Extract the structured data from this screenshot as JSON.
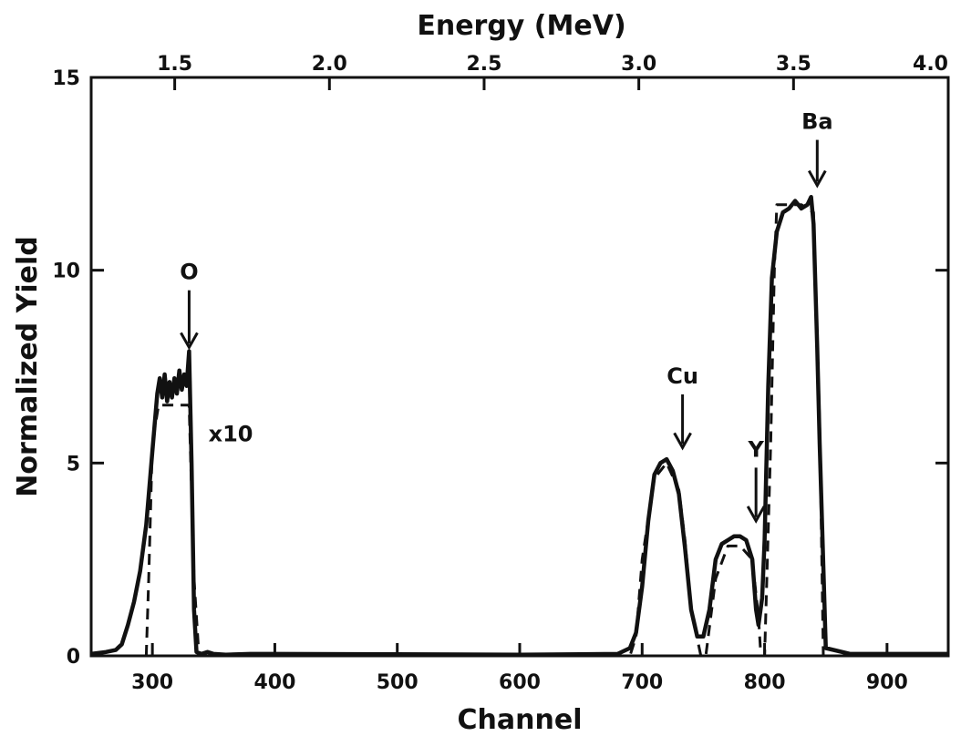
{
  "chart_data": {
    "type": "line",
    "xlabel": "Channel",
    "ylabel": "Normalized Yield",
    "x2label": "Energy (MeV)",
    "xlim": [
      250,
      950
    ],
    "ylim": [
      0,
      15
    ],
    "x2lim": [
      1.23,
      4.0
    ],
    "x_ticks": [
      300,
      400,
      500,
      600,
      700,
      800,
      900
    ],
    "y_ticks": [
      0,
      5,
      10,
      15
    ],
    "x2_ticks": [
      1.5,
      2.0,
      2.5,
      3.0,
      3.5,
      4.0
    ],
    "x2_tick_labels": [
      "1.5",
      "2.0",
      "2.5",
      "3.0",
      "3.5",
      "4.0"
    ],
    "grid": false,
    "series": [
      {
        "style": "solid",
        "x": [
          250,
          262,
          270,
          275,
          280,
          285,
          290,
          295,
          300,
          304,
          306,
          308,
          310,
          312,
          314,
          316,
          318,
          320,
          322,
          324,
          326,
          328,
          330,
          332,
          334,
          336,
          340,
          345,
          350,
          360,
          380,
          400,
          500,
          600,
          680,
          690,
          695,
          700,
          705,
          710,
          715,
          720,
          725,
          730,
          735,
          740,
          745,
          750,
          755,
          760,
          765,
          770,
          775,
          780,
          785,
          790,
          793,
          795,
          798,
          800,
          803,
          806,
          810,
          815,
          820,
          825,
          830,
          835,
          838,
          840,
          843,
          845,
          850,
          870,
          950
        ],
        "y": [
          0.05,
          0.1,
          0.15,
          0.3,
          0.8,
          1.4,
          2.2,
          3.4,
          5.3,
          6.8,
          7.2,
          6.7,
          7.3,
          6.6,
          7.1,
          6.7,
          7.2,
          6.8,
          7.4,
          6.9,
          7.3,
          7.0,
          7.9,
          5.0,
          1.2,
          0.1,
          0.05,
          0.1,
          0.05,
          0.03,
          0.05,
          0.05,
          0.04,
          0.03,
          0.05,
          0.2,
          0.6,
          1.8,
          3.5,
          4.7,
          5.0,
          5.1,
          4.8,
          4.2,
          2.8,
          1.2,
          0.5,
          0.5,
          1.2,
          2.5,
          2.9,
          3.0,
          3.1,
          3.1,
          3.0,
          2.5,
          1.2,
          0.8,
          1.5,
          3.0,
          7.0,
          9.8,
          11.0,
          11.5,
          11.6,
          11.8,
          11.6,
          11.7,
          11.9,
          11.2,
          8.0,
          5.5,
          0.2,
          0.05,
          0.05
        ]
      },
      {
        "style": "dashed",
        "x": [
          295,
          297,
          300,
          305,
          330,
          334,
          338,
          690,
          695,
          700,
          710,
          720,
          730,
          735,
          740,
          748,
          752,
          760,
          770,
          780,
          790,
          795,
          797,
          800,
          805,
          808,
          810,
          830,
          840,
          845,
          848
        ],
        "y": [
          0,
          2,
          5.5,
          6.5,
          6.5,
          2,
          0,
          0,
          0.5,
          2.5,
          4.6,
          5.0,
          4.3,
          3.0,
          1.2,
          0,
          0,
          2.0,
          2.85,
          2.85,
          2.5,
          1.0,
          0,
          0,
          5.5,
          10,
          11.7,
          11.7,
          11.5,
          6.0,
          0
        ]
      }
    ],
    "annotations": [
      {
        "text": "O",
        "x": 330,
        "y": 10.0,
        "arrow_to_y": 8.0
      },
      {
        "text": "Cu",
        "x": 733,
        "y": 7.3,
        "arrow_to_y": 5.4
      },
      {
        "text": "Y",
        "x": 793,
        "y": 5.4,
        "arrow_to_y": 3.5
      },
      {
        "text": "Ba",
        "x": 843,
        "y": 13.9,
        "arrow_to_y": 12.2
      },
      {
        "text": "x10",
        "x": 364,
        "y": 5.8
      }
    ]
  }
}
